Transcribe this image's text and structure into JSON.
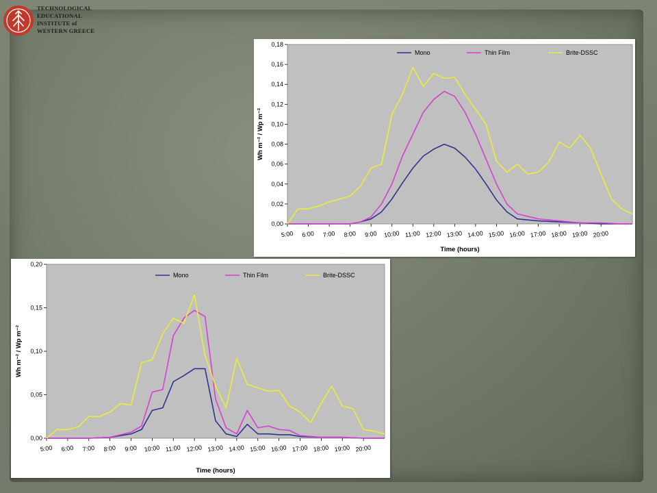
{
  "logo": {
    "lines": [
      "TECHNOLOGICAL",
      "EDUCATIONAL",
      "INSTITUTE of",
      "WESTERN GREECE"
    ],
    "color": "#c0392b"
  },
  "chart_data": [
    {
      "type": "line",
      "title": "",
      "xlabel": "Time (hours)",
      "ylabel": "Wh m⁻² / Wp m⁻²",
      "ylim": [
        0,
        0.18
      ],
      "yticks": [
        "0,00",
        "0,02",
        "0,04",
        "0,06",
        "0,08",
        "0,10",
        "0,12",
        "0,14",
        "0,16",
        "0,18"
      ],
      "x_tick_labels": [
        "5:00",
        "6:00",
        "7:00",
        "8:00",
        "9:00",
        "10:00",
        "11:00",
        "12:00",
        "13:00",
        "14:00",
        "15:00",
        "16:00",
        "17:00",
        "18:00",
        "19:00",
        "20:00"
      ],
      "xlim": [
        5,
        21.5
      ],
      "legend_position": "top",
      "plot_background": "#c0c0c0",
      "grid": false,
      "series": [
        {
          "name": "Mono",
          "color": "#2e3191",
          "x": [
            5,
            6,
            7,
            8,
            8.5,
            9,
            9.5,
            10,
            10.5,
            11,
            11.5,
            12,
            12.5,
            13,
            13.5,
            14,
            14.5,
            15,
            15.5,
            16,
            17,
            18,
            19,
            20,
            21,
            21.5
          ],
          "y": [
            0,
            0,
            0,
            0,
            0.002,
            0.005,
            0.012,
            0.025,
            0.041,
            0.056,
            0.068,
            0.075,
            0.08,
            0.076,
            0.067,
            0.055,
            0.04,
            0.024,
            0.012,
            0.005,
            0.003,
            0.002,
            0.001,
            0,
            0,
            0
          ]
        },
        {
          "name": "Thin Film",
          "color": "#d63fd1",
          "x": [
            5,
            6,
            7,
            8,
            8.5,
            9,
            9.5,
            10,
            10.5,
            11,
            11.5,
            12,
            12.5,
            13,
            13.5,
            14,
            14.5,
            15,
            15.5,
            16,
            17,
            18,
            19,
            20,
            21,
            21.5
          ],
          "y": [
            0,
            0,
            0,
            0,
            0.002,
            0.007,
            0.02,
            0.04,
            0.068,
            0.09,
            0.112,
            0.125,
            0.133,
            0.128,
            0.112,
            0.09,
            0.065,
            0.04,
            0.02,
            0.01,
            0.005,
            0.003,
            0.001,
            0.001,
            0,
            0
          ]
        },
        {
          "name": "Brite-DSSC",
          "color": "#ecec3c",
          "x": [
            5,
            5.5,
            6,
            6.5,
            7,
            7.5,
            8,
            8.5,
            9,
            9.5,
            10,
            10.5,
            11,
            11.5,
            12,
            12.5,
            13,
            13.5,
            14,
            14.5,
            15,
            15.5,
            16,
            16.5,
            17,
            17.5,
            18,
            18.5,
            19,
            19.5,
            20,
            20.5,
            21,
            21.5
          ],
          "y": [
            0,
            0.015,
            0.015,
            0.018,
            0.022,
            0.025,
            0.028,
            0.038,
            0.056,
            0.06,
            0.11,
            0.13,
            0.157,
            0.138,
            0.151,
            0.146,
            0.147,
            0.13,
            0.115,
            0.1,
            0.063,
            0.052,
            0.06,
            0.05,
            0.052,
            0.062,
            0.082,
            0.076,
            0.089,
            0.076,
            0.05,
            0.025,
            0.015,
            0.01
          ]
        }
      ]
    },
    {
      "type": "line",
      "title": "",
      "xlabel": "Time (hours)",
      "ylabel": "Wh m⁻² / Wp m⁻²",
      "ylim": [
        0,
        0.2
      ],
      "yticks": [
        "0,00",
        "0,05",
        "0,10",
        "0,15",
        "0,20"
      ],
      "x_tick_labels": [
        "5:00",
        "6:00",
        "7:00",
        "8:00",
        "9:00",
        "10:00",
        "11:00",
        "12:00",
        "13:00",
        "14:00",
        "15:00",
        "16:00",
        "17:00",
        "18:00",
        "19:00",
        "20:00"
      ],
      "xlim": [
        5,
        21
      ],
      "legend_position": "top",
      "plot_background": "#c0c0c0",
      "grid": false,
      "series": [
        {
          "name": "Mono",
          "color": "#2e3191",
          "x": [
            5,
            6,
            7,
            8,
            8.5,
            9,
            9.5,
            10,
            10.5,
            11,
            11.5,
            12,
            12.5,
            13,
            13.5,
            14,
            14.5,
            15,
            15.5,
            16,
            16.5,
            17,
            18,
            19,
            20,
            21
          ],
          "y": [
            0,
            0,
            0,
            0.001,
            0.003,
            0.005,
            0.01,
            0.032,
            0.035,
            0.065,
            0.072,
            0.08,
            0.08,
            0.02,
            0.005,
            0.002,
            0.016,
            0.005,
            0.005,
            0.004,
            0.004,
            0.002,
            0.001,
            0.001,
            0,
            0
          ]
        },
        {
          "name": "Thin Film",
          "color": "#d63fd1",
          "x": [
            5,
            6,
            7,
            8,
            8.5,
            9,
            9.5,
            10,
            10.5,
            11,
            11.5,
            12,
            12.5,
            13,
            13.5,
            14,
            14.5,
            15,
            15.5,
            16,
            16.5,
            17,
            18,
            19,
            20,
            21
          ],
          "y": [
            0,
            0,
            0,
            0.001,
            0.004,
            0.007,
            0.014,
            0.053,
            0.056,
            0.118,
            0.138,
            0.147,
            0.14,
            0.045,
            0.012,
            0.005,
            0.032,
            0.012,
            0.014,
            0.01,
            0.009,
            0.003,
            0.001,
            0.001,
            0,
            0
          ]
        },
        {
          "name": "Brite-DSSC",
          "color": "#ecec3c",
          "x": [
            5,
            5.5,
            6,
            6.5,
            7,
            7.5,
            8,
            8.5,
            9,
            9.5,
            10,
            10.5,
            11,
            11.5,
            12,
            12.5,
            13,
            13.5,
            14,
            14.5,
            15,
            15.5,
            16,
            16.5,
            17,
            17.5,
            18,
            18.5,
            19,
            19.5,
            20,
            20.5,
            21
          ],
          "y": [
            0,
            0.01,
            0.01,
            0.013,
            0.025,
            0.025,
            0.03,
            0.04,
            0.038,
            0.087,
            0.09,
            0.12,
            0.138,
            0.132,
            0.165,
            0.095,
            0.06,
            0.035,
            0.092,
            0.062,
            0.058,
            0.054,
            0.055,
            0.037,
            0.03,
            0.018,
            0.04,
            0.06,
            0.037,
            0.034,
            0.01,
            0.008,
            0.005
          ]
        }
      ]
    }
  ]
}
